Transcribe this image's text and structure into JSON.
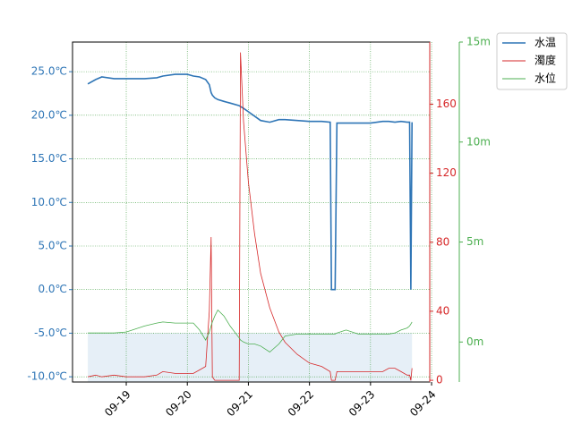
{
  "chart_data": {
    "type": "line",
    "x": [
      18.37,
      18.5,
      18.6,
      18.8,
      19.0,
      19.3,
      19.5,
      19.6,
      19.8,
      20.0,
      20.1,
      20.2,
      20.3,
      20.36,
      20.39,
      20.41,
      20.45,
      20.5,
      20.6,
      20.7,
      20.85,
      20.87,
      20.92,
      21.0,
      21.1,
      21.2,
      21.35,
      21.5,
      21.6,
      21.8,
      22.0,
      22.2,
      22.34,
      22.36,
      22.42,
      22.45,
      22.6,
      22.8,
      23.0,
      23.2,
      23.3,
      23.4,
      23.5,
      23.6,
      23.64,
      23.66,
      23.68
    ],
    "xlim": [
      18.12,
      23.97
    ],
    "xticks": [
      {
        "value": 19,
        "label": "09-19"
      },
      {
        "value": 20,
        "label": "09-20"
      },
      {
        "value": 21,
        "label": "09-21"
      },
      {
        "value": 22,
        "label": "09-22"
      },
      {
        "value": 23,
        "label": "09-23"
      },
      {
        "value": 24,
        "label": "09-24"
      }
    ],
    "ylim": [
      -10.6,
      28.4
    ],
    "yticks": [
      {
        "value": -10,
        "label": "-10.0℃"
      },
      {
        "value": -5,
        "label": "-5.0℃"
      },
      {
        "value": 0,
        "label": "0.0℃"
      },
      {
        "value": 5,
        "label": "5.0℃"
      },
      {
        "value": 10,
        "label": "10.0℃"
      },
      {
        "value": 15,
        "label": "15.0℃"
      },
      {
        "value": 20,
        "label": "20.0℃"
      },
      {
        "value": 25,
        "label": "25.0℃"
      }
    ],
    "y2lim": [
      -1,
      196
    ],
    "y2ticks": [
      0,
      40,
      80,
      120,
      160
    ],
    "y3lim": [
      -2,
      15
    ],
    "y3ticks": [
      {
        "value": 0,
        "label": "0m"
      },
      {
        "value": 5,
        "label": "5m"
      },
      {
        "value": 10,
        "label": "10m"
      },
      {
        "value": 15,
        "label": "15m"
      }
    ],
    "grid": true,
    "legend": "upper right",
    "series": [
      {
        "name": "水温",
        "color": "#2e75b6",
        "axis": "y",
        "values": [
          23.6,
          24.1,
          24.4,
          24.2,
          24.2,
          24.2,
          24.3,
          24.5,
          24.7,
          24.7,
          24.5,
          24.4,
          24.1,
          23.5,
          22.6,
          22.3,
          22.0,
          21.8,
          21.6,
          21.4,
          21.1,
          21.0,
          20.8,
          20.4,
          19.9,
          19.4,
          19.2,
          19.5,
          19.5,
          19.4,
          19.3,
          19.3,
          19.2,
          0,
          0,
          19.1,
          19.1,
          19.1,
          19.1,
          19.3,
          19.3,
          19.2,
          19.3,
          19.2,
          19.2,
          0,
          19.2
        ]
      },
      {
        "name": "濁度",
        "color": "#d62728",
        "axis": "y2",
        "values": [
          2,
          3,
          2,
          3,
          2,
          2,
          3,
          5,
          4,
          4,
          4,
          6,
          8,
          40,
          83,
          2,
          0,
          0,
          0,
          0,
          0,
          190,
          150,
          115,
          85,
          62,
          42,
          28,
          22,
          15,
          10,
          8,
          5,
          0,
          0,
          5,
          5,
          5,
          5,
          5,
          7,
          7,
          5,
          3,
          3,
          0,
          7
        ]
      },
      {
        "name": "水位",
        "color": "#4caf50",
        "axis": "y3",
        "values": [
          0.45,
          0.45,
          0.45,
          0.45,
          0.5,
          0.8,
          0.95,
          1.0,
          0.95,
          0.95,
          0.95,
          0.6,
          0.1,
          0.5,
          0.8,
          1.0,
          1.3,
          1.6,
          1.3,
          0.8,
          0.2,
          0.1,
          0.0,
          -0.1,
          -0.1,
          -0.2,
          -0.5,
          -0.1,
          0.3,
          0.4,
          0.4,
          0.4,
          0.4,
          0.4,
          0.4,
          0.45,
          0.6,
          0.4,
          0.4,
          0.4,
          0.4,
          0.45,
          0.6,
          0.7,
          0.8,
          0.9,
          1.0
        ]
      }
    ]
  }
}
